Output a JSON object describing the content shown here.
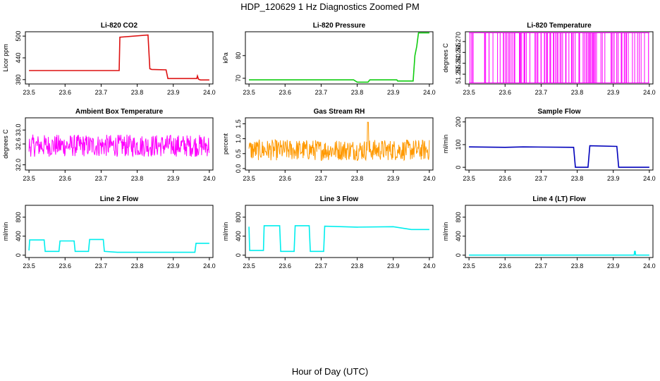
{
  "figure": {
    "title": "HDP_120629  1 Hz Diagnostics Zoomed PM",
    "xlabel": "Hour of Day (UTC)"
  },
  "chart_data": [
    {
      "id": "co2",
      "type": "line",
      "title": "Li-820 CO2",
      "ylabel": "Licor ppm",
      "color": "#dd1111",
      "style": "steps",
      "xlim": [
        23.49,
        24.01
      ],
      "ylim": [
        368,
        512
      ],
      "xticks": [
        23.5,
        23.6,
        23.7,
        23.8,
        23.9,
        24.0
      ],
      "xtick_labels": [
        "23.5",
        "23.6",
        "23.7",
        "23.8",
        "23.9",
        "24.0"
      ],
      "yticks": [
        380,
        440,
        500
      ],
      "ytick_labels": [
        "380",
        "440",
        "500"
      ],
      "x": [
        23.5,
        23.75,
        23.752,
        23.83,
        23.835,
        23.84,
        23.88,
        23.885,
        23.965,
        23.967,
        23.97,
        23.975,
        24.0
      ],
      "y": [
        405,
        405,
        497,
        503,
        410,
        408,
        407,
        383,
        383,
        390,
        381,
        379,
        379
      ]
    },
    {
      "id": "pressure",
      "type": "line",
      "title": "Li-820 Pressure",
      "ylabel": "kPa",
      "color": "#11cc11",
      "style": "steps",
      "xlim": [
        23.49,
        24.01
      ],
      "ylim": [
        67.5,
        90.5
      ],
      "xticks": [
        23.5,
        23.6,
        23.7,
        23.8,
        23.9,
        24.0
      ],
      "xtick_labels": [
        "23.5",
        "23.6",
        "23.7",
        "23.8",
        "23.9",
        "24.0"
      ],
      "yticks": [
        70,
        80
      ],
      "ytick_labels": [
        "70",
        "80"
      ],
      "x": [
        23.5,
        23.79,
        23.8,
        23.83,
        23.835,
        23.91,
        23.912,
        23.955,
        23.96,
        23.965,
        23.97,
        24.0
      ],
      "y": [
        69.3,
        69.3,
        68.3,
        68.3,
        69.3,
        69.3,
        68.8,
        68.8,
        80,
        84,
        90,
        90
      ]
    },
    {
      "id": "temperature",
      "type": "line",
      "title": "Li-820 Temperature",
      "ylabel": "degrees C",
      "color": "#ff00ff",
      "style": "dense",
      "xlim": [
        23.49,
        24.01
      ],
      "ylim": [
        51.2505,
        51.2745
      ],
      "xticks": [
        23.5,
        23.6,
        23.7,
        23.8,
        23.9,
        24.0
      ],
      "xtick_labels": [
        "23.5",
        "23.6",
        "23.7",
        "23.8",
        "23.9",
        "24.0"
      ],
      "yticks": [
        51.255,
        51.26,
        51.265,
        51.27
      ],
      "ytick_labels": [
        "51.255",
        "51.260",
        "51.265",
        "51.270"
      ],
      "range": [
        51.251,
        51.274
      ],
      "density": 110
    },
    {
      "id": "ambient",
      "type": "line",
      "title": "Ambient Box Temperature",
      "ylabel": "degrees C",
      "color": "#ff00ff",
      "style": "noise",
      "xlim": [
        23.49,
        24.01
      ],
      "ylim": [
        31.85,
        33.35
      ],
      "xticks": [
        23.5,
        23.6,
        23.7,
        23.8,
        23.9,
        24.0
      ],
      "xtick_labels": [
        "23.5",
        "23.6",
        "23.7",
        "23.8",
        "23.9",
        "24.0"
      ],
      "yticks": [
        32.0,
        32.6,
        33.0
      ],
      "ytick_labels": [
        "32.0",
        "32.6",
        "33.0"
      ],
      "mean": 32.55,
      "spread": 0.32,
      "points": 420
    },
    {
      "id": "rh",
      "type": "line",
      "title": "Gas Stream RH",
      "ylabel": "percent",
      "color": "#ff9900",
      "style": "noise",
      "xlim": [
        23.49,
        24.01
      ],
      "ylim": [
        -0.05,
        1.7
      ],
      "xticks": [
        23.5,
        23.6,
        23.7,
        23.8,
        23.9,
        24.0
      ],
      "xtick_labels": [
        "23.5",
        "23.6",
        "23.7",
        "23.8",
        "23.9",
        "24.0"
      ],
      "yticks": [
        0.0,
        0.5,
        1.0,
        1.5
      ],
      "ytick_labels": [
        "0.0",
        "0.5",
        "1.0",
        "1.5"
      ],
      "mean": 0.62,
      "spread": 0.35,
      "points": 420,
      "spike": [
        23.83,
        1.55
      ]
    },
    {
      "id": "sample",
      "type": "line",
      "title": "Sample Flow",
      "ylabel": "ml/min",
      "color": "#0000bb",
      "style": "steps",
      "xlim": [
        23.49,
        24.01
      ],
      "ylim": [
        -12,
        218
      ],
      "xticks": [
        23.5,
        23.6,
        23.7,
        23.8,
        23.9,
        24.0
      ],
      "xtick_labels": [
        "23.5",
        "23.6",
        "23.7",
        "23.8",
        "23.9",
        "24.0"
      ],
      "yticks": [
        0,
        100,
        200
      ],
      "ytick_labels": [
        "0",
        "100",
        "200"
      ],
      "x": [
        23.5,
        23.6,
        23.65,
        23.79,
        23.795,
        23.83,
        23.835,
        23.91,
        23.915,
        24.0
      ],
      "y": [
        90,
        88,
        90,
        88,
        0,
        0,
        95,
        92,
        0,
        0
      ]
    },
    {
      "id": "line2",
      "type": "line",
      "title": "Line 2 Flow",
      "ylabel": "ml/min",
      "color": "#00eeee",
      "style": "steps",
      "xlim": [
        23.49,
        24.01
      ],
      "ylim": [
        -50,
        1050
      ],
      "xticks": [
        23.5,
        23.6,
        23.7,
        23.8,
        23.9,
        24.0
      ],
      "xtick_labels": [
        "23.5",
        "23.6",
        "23.7",
        "23.8",
        "23.9",
        "24.0"
      ],
      "yticks": [
        0,
        400,
        800
      ],
      "ytick_labels": [
        "0",
        "400",
        "800"
      ],
      "x": [
        23.5,
        23.502,
        23.542,
        23.545,
        23.583,
        23.586,
        23.625,
        23.628,
        23.665,
        23.668,
        23.706,
        23.709,
        23.745,
        23.96,
        23.963,
        24.0
      ],
      "y": [
        100,
        320,
        320,
        80,
        80,
        300,
        300,
        80,
        80,
        330,
        330,
        80,
        60,
        60,
        250,
        250
      ]
    },
    {
      "id": "line3",
      "type": "line",
      "title": "Line 3 Flow",
      "ylabel": "ml/min",
      "color": "#00eeee",
      "style": "steps",
      "xlim": [
        23.49,
        24.01
      ],
      "ylim": [
        -50,
        1050
      ],
      "xticks": [
        23.5,
        23.6,
        23.7,
        23.8,
        23.9,
        24.0
      ],
      "xtick_labels": [
        "23.5",
        "23.6",
        "23.7",
        "23.8",
        "23.9",
        "24.0"
      ],
      "yticks": [
        0,
        400,
        800
      ],
      "ytick_labels": [
        "0",
        "400",
        "800"
      ],
      "x": [
        23.5,
        23.502,
        23.54,
        23.542,
        23.585,
        23.588,
        23.625,
        23.628,
        23.667,
        23.67,
        23.707,
        23.71,
        23.8,
        23.9,
        23.95,
        24.0
      ],
      "y": [
        600,
        100,
        100,
        620,
        620,
        80,
        80,
        620,
        620,
        80,
        80,
        610,
        590,
        600,
        540,
        540
      ]
    },
    {
      "id": "line4",
      "type": "line",
      "title": "Line 4 (LT) Flow",
      "ylabel": "ml/min",
      "color": "#00eeee",
      "style": "steps",
      "xlim": [
        23.49,
        24.01
      ],
      "ylim": [
        -50,
        1050
      ],
      "xticks": [
        23.5,
        23.6,
        23.7,
        23.8,
        23.9,
        24.0
      ],
      "xtick_labels": [
        "23.5",
        "23.6",
        "23.7",
        "23.8",
        "23.9",
        "24.0"
      ],
      "yticks": [
        0,
        400,
        800
      ],
      "ytick_labels": [
        "0",
        "400",
        "800"
      ],
      "x": [
        23.5,
        23.958,
        23.959,
        23.961,
        23.962,
        24.0
      ],
      "y": [
        0,
        0,
        80,
        80,
        0,
        0
      ]
    }
  ]
}
